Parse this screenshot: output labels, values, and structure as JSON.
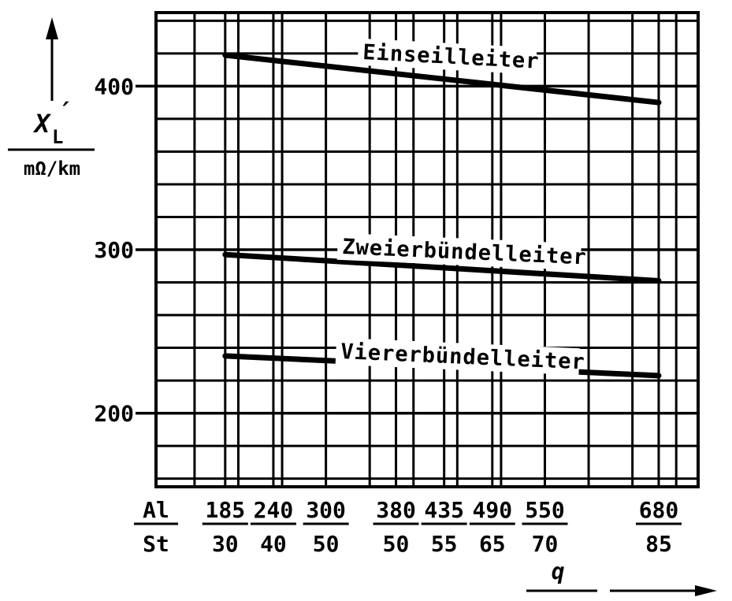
{
  "chart_data": {
    "type": "line",
    "y_axis": {
      "symbol": "X",
      "symbol_sup": "′",
      "symbol_sub": "L",
      "unit": "mΩ/km",
      "ylim": [
        155,
        445
      ],
      "ticks": [
        200,
        300,
        400
      ]
    },
    "x_axis": {
      "label": "q",
      "header_top": "Al",
      "header_bottom": "St",
      "categories": [
        {
          "al": "185",
          "st": "30"
        },
        {
          "al": "240",
          "st": "40"
        },
        {
          "al": "300",
          "st": "50"
        },
        {
          "al": "380",
          "st": "50"
        },
        {
          "al": "435",
          "st": "55"
        },
        {
          "al": "490",
          "st": "65"
        },
        {
          "al": "550",
          "st": "70"
        },
        {
          "al": "680",
          "st": "85"
        }
      ],
      "xlim": [
        106,
        725
      ]
    },
    "series": [
      {
        "name": "Einseilleiter",
        "x": [
          185,
          680
        ],
        "y": [
          419,
          390
        ]
      },
      {
        "name": "Zweierbündelleiter",
        "x": [
          185,
          680
        ],
        "y": [
          297,
          281
        ]
      },
      {
        "name": "Viererbündelleiter",
        "x": [
          185,
          680
        ],
        "y": [
          235,
          223
        ]
      }
    ],
    "grid": true
  }
}
